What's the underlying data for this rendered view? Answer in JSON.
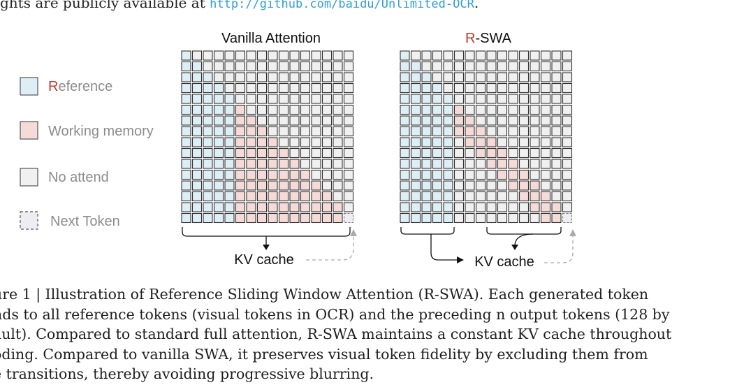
{
  "top_text": {
    "before": "ghts are publicly available at ",
    "url": "http://github.com/baidu/Unlimited-OCR",
    "after": "."
  },
  "figure": {
    "left_title": "Vanilla Attention",
    "right_title_first": "R",
    "right_title_rest": "-SWA",
    "kv_label_left": "KV cache",
    "kv_label_right": "KV cache",
    "legend": [
      {
        "key": "reference",
        "first": "R",
        "rest": "eference"
      },
      {
        "key": "working",
        "first": "",
        "rest": "Working memory"
      },
      {
        "key": "noattend",
        "first": "",
        "rest": "No attend"
      },
      {
        "key": "next",
        "first": "",
        "rest": "Next Token"
      }
    ],
    "colors": {
      "reference": "#ddeef5",
      "working": "#f5dbd8",
      "noattend": "#f0f0f0",
      "next": "#eeedf3",
      "red_accent": "#c0392b",
      "legend_text": "#8c8c8c"
    }
  },
  "caption_lines": [
    "ure 1 | Illustration of Reference Sliding Window Attention (R-SWA). Each generated token",
    "nds to all reference tokens (visual tokens in OCR) and the preceding n output tokens (128 by",
    "ault). Compared to standard full attention, R-SWA maintains a constant KV cache throughout",
    "oding. Compared to vanilla SWA, it preserves visual token fidelity by excluding them from",
    "e transitions, thereby avoiding progressive blurring."
  ]
}
